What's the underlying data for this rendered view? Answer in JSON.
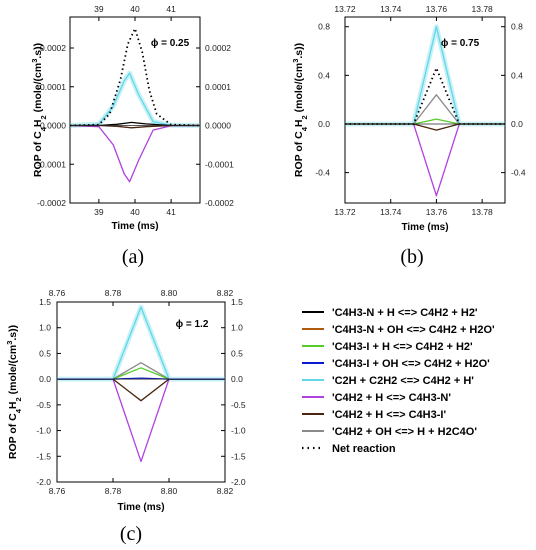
{
  "reaction_colors": {
    "C4H3N_H": "#000000",
    "C4H3N_OH": "#b05a10",
    "C4H3I_H": "#55cc2a",
    "C4H3I_OH": "#0a1ad0",
    "C2H_C2H2": "#60d8e8",
    "C4H2_H_C4H3N": "#b040e0",
    "C4H2_H_C4H3I": "#4a2510",
    "C4H2_OH": "#8a8a8a",
    "net": "#000000"
  },
  "chart_data": [
    {
      "type": "line",
      "panel_label": "(a)",
      "annotation": "ϕ = 0.25",
      "xlabel": "Time (ms)",
      "ylabel": "ROP of C4H2 (mole/(cm3.s))",
      "xlim": [
        38.2,
        41.8
      ],
      "ylim": [
        -0.0002,
        0.00028
      ],
      "xticks_bottom": [
        "39",
        "40",
        "41"
      ],
      "xticks_top": [
        "39",
        "40",
        "41"
      ],
      "yticks_left": [
        "0.0002",
        "0.0001",
        "0.0000",
        "-0.0001",
        "-0.0002"
      ],
      "yticks_right": [
        "0.0002",
        "0.0001",
        "0.0000",
        "-0.0001",
        "-0.0002"
      ],
      "series": [
        {
          "key": "C2H_C2H2",
          "x": [
            38.2,
            39.0,
            39.4,
            39.7,
            39.85,
            40.1,
            40.5,
            41.0,
            41.8
          ],
          "y": [
            0,
            3e-06,
            5e-05,
            0.000115,
            0.000135,
            8e-05,
            1e-05,
            5e-07,
            0
          ]
        },
        {
          "key": "C4H2_H_C4H3N",
          "x": [
            38.2,
            39.0,
            39.4,
            39.7,
            39.85,
            40.1,
            40.5,
            41.0,
            41.8
          ],
          "y": [
            0,
            -3e-06,
            -5e-05,
            -0.000125,
            -0.000145,
            -9e-05,
            -1.2e-05,
            -5e-07,
            0
          ]
        },
        {
          "key": "C4H3N_H",
          "x": [
            38.2,
            39.0,
            39.5,
            39.9,
            40.3,
            41.0,
            41.8
          ],
          "y": [
            0,
            0,
            3e-06,
            8e-06,
            4e-06,
            0,
            0
          ]
        },
        {
          "key": "C4H2_H_C4H3I",
          "x": [
            38.2,
            39.0,
            39.5,
            39.9,
            40.3,
            41.0,
            41.8
          ],
          "y": [
            0,
            0,
            -2e-06,
            -6e-06,
            -3e-06,
            0,
            0
          ]
        },
        {
          "key": "net",
          "x": [
            38.2,
            39.0,
            39.3,
            39.6,
            39.8,
            40.0,
            40.2,
            40.4,
            40.6,
            41.0,
            41.8
          ],
          "y": [
            0,
            2e-06,
            3e-05,
            0.00012,
            0.00021,
            0.00025,
            0.00019,
            9e-05,
            3e-05,
            2e-06,
            0
          ]
        }
      ]
    },
    {
      "type": "line",
      "panel_label": "(b)",
      "annotation": "ϕ = 0.75",
      "xlabel": "Time (ms)",
      "ylabel": "ROP of C4H2 (mole/(cm3.s))",
      "xlim": [
        13.72,
        13.79
      ],
      "ylim": [
        -0.65,
        0.88
      ],
      "xticks_bottom": [
        "13.72",
        "13.74",
        "13.76",
        "13.78"
      ],
      "xticks_top": [
        "13.72",
        "13.74",
        "13.76",
        "13.78"
      ],
      "yticks_left": [
        "0.8",
        "0.4",
        "0.0",
        "-0.4"
      ],
      "yticks_right": [
        "0.8",
        "0.4",
        "0.0",
        "-0.4"
      ],
      "series": [
        {
          "key": "C2H_C2H2",
          "x": [
            13.72,
            13.75,
            13.76,
            13.77,
            13.79
          ],
          "y": [
            0,
            0,
            0.8,
            0,
            0
          ]
        },
        {
          "key": "C4H2_H_C4H3N",
          "x": [
            13.72,
            13.75,
            13.76,
            13.77,
            13.79
          ],
          "y": [
            0,
            0,
            -0.59,
            0,
            0
          ]
        },
        {
          "key": "C4H2_OH",
          "x": [
            13.72,
            13.75,
            13.76,
            13.77,
            13.79
          ],
          "y": [
            0,
            0,
            0.24,
            0,
            0
          ]
        },
        {
          "key": "C4H3I_H",
          "x": [
            13.72,
            13.75,
            13.76,
            13.77,
            13.79
          ],
          "y": [
            0,
            0,
            0.04,
            0,
            0
          ]
        },
        {
          "key": "C4H2_H_C4H3I",
          "x": [
            13.72,
            13.75,
            13.76,
            13.77,
            13.79
          ],
          "y": [
            0,
            0,
            -0.05,
            0,
            0
          ]
        },
        {
          "key": "net",
          "x": [
            13.72,
            13.75,
            13.76,
            13.77,
            13.79
          ],
          "y": [
            0,
            0,
            0.46,
            0,
            0
          ]
        }
      ]
    },
    {
      "type": "line",
      "panel_label": "(c)",
      "annotation": "ϕ = 1.2",
      "xlabel": "Time (ms)",
      "ylabel": "ROP of C4H2 (mole/(cm3.s))",
      "xlim": [
        8.76,
        8.82
      ],
      "ylim": [
        -2.0,
        1.5
      ],
      "xticks_bottom": [
        "8.76",
        "8.78",
        "8.80",
        "8.82"
      ],
      "xticks_top": [
        "8.76",
        "8.78",
        "8.80",
        "8.82"
      ],
      "yticks_left": [
        "1.5",
        "1.0",
        "0.5",
        "0.0",
        "-0.5",
        "-1.0",
        "-1.5",
        "-2.0"
      ],
      "yticks_right": [
        "1.5",
        "1.0",
        "0.5",
        "0.0",
        "-0.5",
        "-1.0",
        "-1.5",
        "-2.0"
      ],
      "series": [
        {
          "key": "C2H_C2H2",
          "x": [
            8.76,
            8.78,
            8.79,
            8.8,
            8.82
          ],
          "y": [
            0,
            0,
            1.4,
            0,
            0
          ]
        },
        {
          "key": "C4H2_H_C4H3N",
          "x": [
            8.76,
            8.78,
            8.79,
            8.8,
            8.82
          ],
          "y": [
            0,
            0,
            -1.6,
            0,
            0
          ]
        },
        {
          "key": "C4H2_OH",
          "x": [
            8.76,
            8.78,
            8.79,
            8.8,
            8.82
          ],
          "y": [
            0,
            0,
            0.32,
            0,
            0
          ]
        },
        {
          "key": "C4H3I_H",
          "x": [
            8.76,
            8.78,
            8.79,
            8.8,
            8.82
          ],
          "y": [
            0,
            0,
            0.22,
            0,
            0
          ]
        },
        {
          "key": "C4H2_H_C4H3I",
          "x": [
            8.76,
            8.78,
            8.79,
            8.8,
            8.82
          ],
          "y": [
            0,
            0,
            -0.42,
            0,
            0
          ]
        },
        {
          "key": "C4H3I_OH",
          "x": [
            8.76,
            8.78,
            8.79,
            8.8,
            8.82
          ],
          "y": [
            0,
            0,
            0.02,
            0,
            0
          ]
        }
      ]
    }
  ],
  "legend": [
    {
      "key": "C4H3N_H",
      "label": "'C4H3-N + H <=> C4H2 + H2'"
    },
    {
      "key": "C4H3N_OH",
      "label": "'C4H3-N + OH <=> C4H2 + H2O'"
    },
    {
      "key": "C4H3I_H",
      "label": "'C4H3-I + H <=> C4H2 + H2'"
    },
    {
      "key": "C4H3I_OH",
      "label": "'C4H3-I + OH <=> C4H2 + H2O'"
    },
    {
      "key": "C2H_C2H2",
      "label": "'C2H + C2H2 <=> C4H2 + H'"
    },
    {
      "key": "C4H2_H_C4H3N",
      "label": "'C4H2 + H <=> C4H3-N'"
    },
    {
      "key": "C4H2_H_C4H3I",
      "label": "'C4H2 + H <=> C4H3-I'"
    },
    {
      "key": "C4H2_OH",
      "label": "'C4H2 + OH <=> H + H2C4O'"
    },
    {
      "key": "net",
      "label": "Net reaction"
    }
  ]
}
